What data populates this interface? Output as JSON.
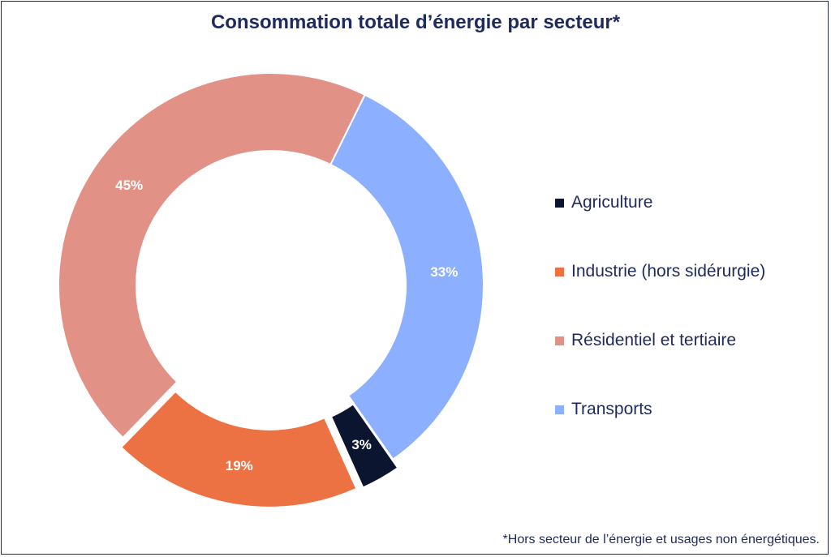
{
  "chart_data": {
    "type": "pie",
    "title": "Consommation totale d’énergie par secteur*",
    "footnote": "*Hors secteur de l’énergie et usages non énergétiques.",
    "legend_position": "right",
    "slices": [
      {
        "label": "Agriculture",
        "value": 3,
        "display": "3%",
        "color": "#0b1530",
        "label_color": "#ffffff",
        "exploded": true
      },
      {
        "label": "Industrie (hors sidérurgie)",
        "value": 19,
        "display": "19%",
        "color": "#ec7143",
        "label_color": "#ffffff",
        "exploded": true
      },
      {
        "label": "Résidentiel et tertiaire",
        "value": 45,
        "display": "45%",
        "color": "#e29186",
        "label_color": "#ffffff",
        "exploded": false
      },
      {
        "label": "Transports",
        "value": 33,
        "display": "33%",
        "color": "#8cb0ff",
        "label_color": "#ffffff",
        "exploded": false
      }
    ]
  }
}
